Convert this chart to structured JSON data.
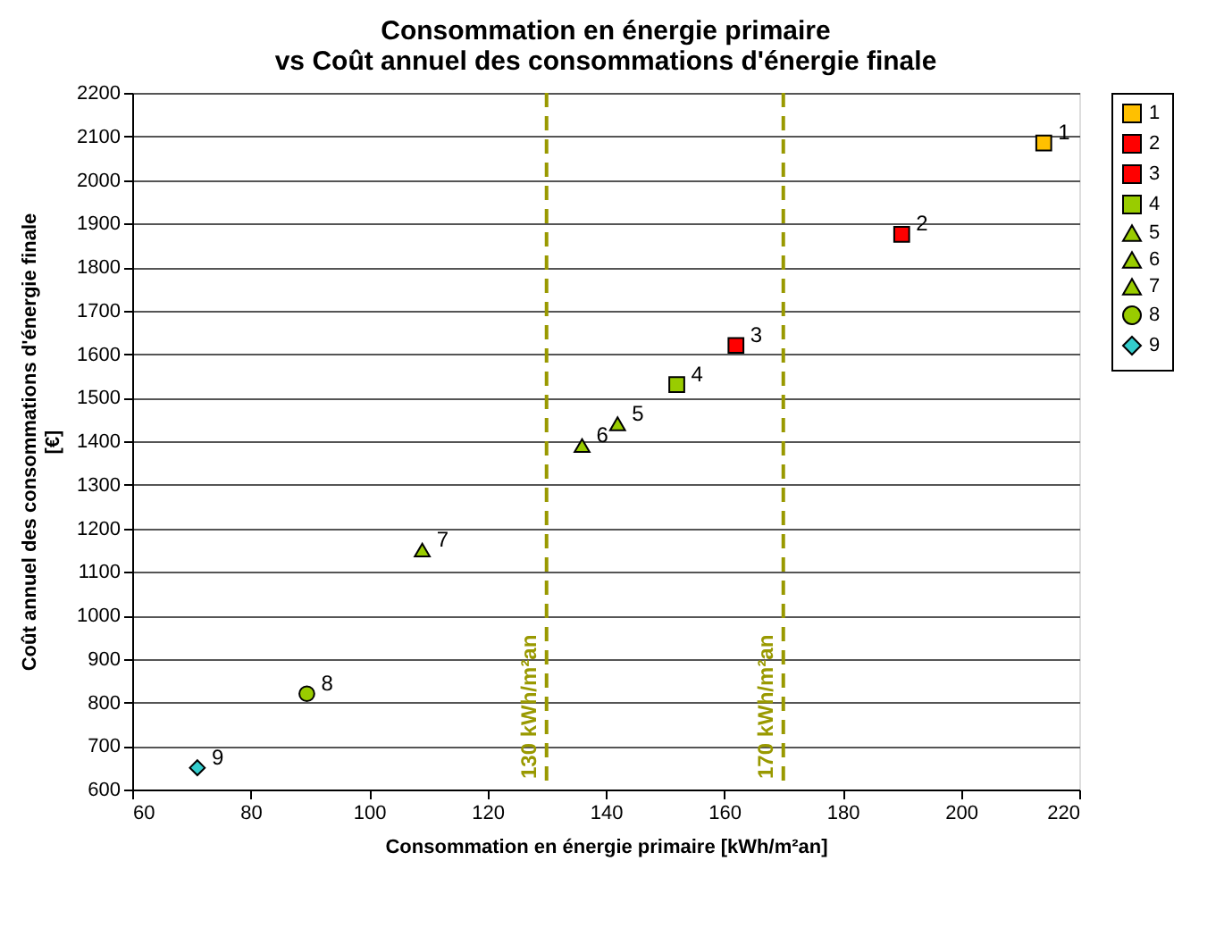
{
  "chart_data": {
    "type": "scatter",
    "title": "Consommation en énergie primaire\nvs Coût annuel des consommations d'énergie finale",
    "xlabel": "Consommation en énergie primaire [kWh/m²an]",
    "ylabel": "Coût annuel des consommations d'énergie finale\n[€]",
    "series": [
      {
        "name": "1",
        "color": "#ffc000",
        "marker": "square",
        "x": [
          214
        ],
        "values": [
          2085
        ]
      },
      {
        "name": "2",
        "color": "#ff0000",
        "marker": "square",
        "x": [
          190
        ],
        "values": [
          1875
        ]
      },
      {
        "name": "3",
        "color": "#ff0000",
        "marker": "square",
        "x": [
          162
        ],
        "values": [
          1620
        ]
      },
      {
        "name": "4",
        "color": "#99cc00",
        "marker": "square",
        "x": [
          152
        ],
        "values": [
          1530
        ]
      },
      {
        "name": "5",
        "color": "#99cc00",
        "marker": "triangle",
        "x": [
          142
        ],
        "values": [
          1440
        ]
      },
      {
        "name": "6",
        "color": "#99cc00",
        "marker": "triangle",
        "x": [
          136
        ],
        "values": [
          1390
        ]
      },
      {
        "name": "7",
        "color": "#99cc00",
        "marker": "triangle",
        "x": [
          109
        ],
        "values": [
          1150
        ]
      },
      {
        "name": "8",
        "color": "#99cc00",
        "marker": "circle",
        "x": [
          89.5
        ],
        "values": [
          820
        ]
      },
      {
        "name": "9",
        "color": "#33cccc",
        "marker": "diamond",
        "x": [
          71
        ],
        "values": [
          650
        ]
      }
    ],
    "xlim": [
      60,
      220
    ],
    "xticks": [
      60,
      80,
      100,
      120,
      140,
      160,
      180,
      200,
      220
    ],
    "ylim": [
      600,
      2200
    ],
    "yticks": [
      600,
      700,
      800,
      900,
      1000,
      1100,
      1200,
      1300,
      1400,
      1500,
      1600,
      1700,
      1800,
      1900,
      2000,
      2100,
      2200
    ],
    "ref_lines": [
      {
        "axis": "x",
        "value": 130,
        "label": "130 kWh/m²an",
        "color": "#999900",
        "line_style": "dashed"
      },
      {
        "axis": "x",
        "value": 170,
        "label": "170 kWh/m²an",
        "color": "#999900",
        "line_style": "dashed"
      }
    ],
    "grid": "y",
    "legend": "right"
  }
}
